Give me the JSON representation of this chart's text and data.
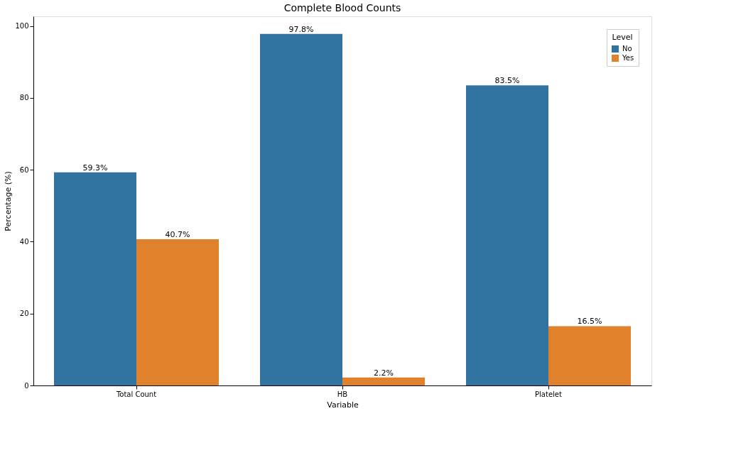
{
  "chart_data": {
    "type": "bar",
    "title": "Complete Blood Counts",
    "xlabel": "Variable",
    "ylabel": "Percentage (%)",
    "legend_title": "Level",
    "legend": "top right",
    "categories": [
      "Total Count",
      "HB",
      "Platelet"
    ],
    "series": [
      {
        "name": "No",
        "color": "#3274a1",
        "values": [
          59.3,
          97.8,
          83.5
        ],
        "value_labels": [
          "59.3%",
          "97.8%",
          "83.5%"
        ]
      },
      {
        "name": "Yes",
        "color": "#e1812c",
        "values": [
          40.7,
          2.2,
          16.5
        ],
        "value_labels": [
          "40.7%",
          "2.2%",
          "16.5%"
        ]
      }
    ],
    "ylim": [
      0,
      102.7
    ],
    "yticks": [
      0,
      20,
      40,
      60,
      80,
      100
    ],
    "grid": false
  }
}
